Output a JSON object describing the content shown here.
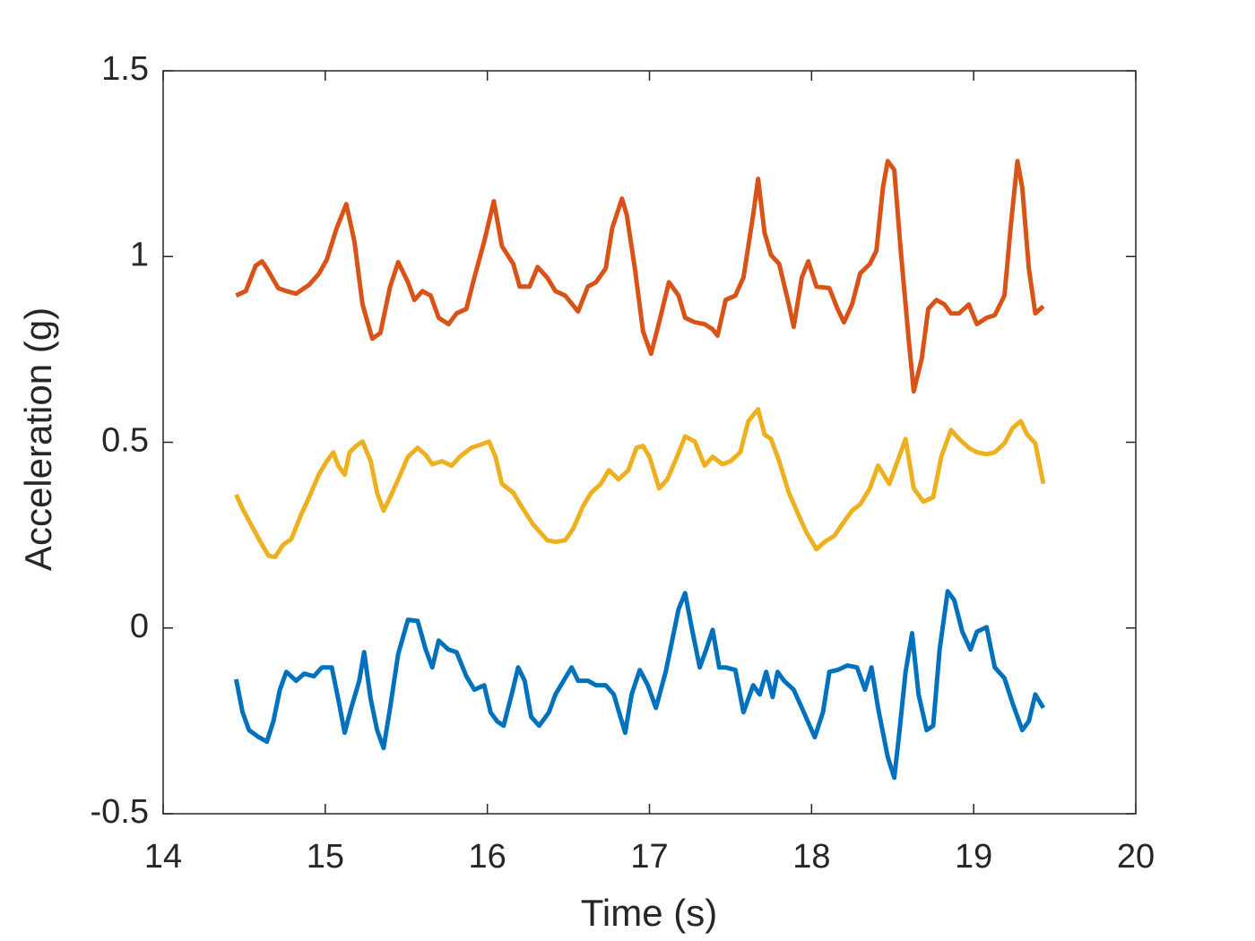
{
  "chart_data": {
    "type": "line",
    "xlabel": "Time (s)",
    "ylabel": "Acceleration (g)",
    "xlim": [
      14,
      20
    ],
    "xticks": [
      14,
      15,
      16,
      17,
      18,
      19,
      20
    ],
    "ylim": [
      -0.5,
      1.5
    ],
    "yticks": [
      -0.5,
      0,
      0.5,
      1,
      1.5
    ],
    "grid": false,
    "series": [
      {
        "color": "#D95319",
        "x": [
          14.45,
          14.51,
          14.57,
          14.61,
          14.64,
          14.71,
          14.76,
          14.82,
          14.9,
          14.96,
          15.01,
          15.07,
          15.13,
          15.18,
          15.23,
          15.29,
          15.34,
          15.4,
          15.45,
          15.51,
          15.55,
          15.6,
          15.65,
          15.7,
          15.76,
          15.81,
          15.87,
          15.92,
          15.98,
          16.04,
          16.09,
          16.16,
          16.2,
          16.26,
          16.31,
          16.37,
          16.42,
          16.48,
          16.56,
          16.62,
          16.67,
          16.73,
          16.77,
          16.83,
          16.86,
          16.91,
          16.96,
          17.01,
          17.06,
          17.12,
          17.18,
          17.22,
          17.28,
          17.34,
          17.39,
          17.42,
          17.47,
          17.53,
          17.58,
          17.64,
          17.67,
          17.71,
          17.75,
          17.8,
          17.86,
          17.89,
          17.94,
          17.98,
          18.03,
          18.11,
          18.16,
          18.2,
          18.25,
          18.3,
          18.36,
          18.4,
          18.44,
          18.47,
          18.51,
          18.55,
          18.6,
          18.63,
          18.68,
          18.72,
          18.77,
          18.82,
          18.86,
          18.91,
          18.97,
          19.02,
          19.08,
          19.13,
          19.19,
          19.23,
          19.27,
          19.3,
          19.34,
          19.38,
          19.43
        ],
        "values": [
          0.895,
          0.907,
          0.975,
          0.987,
          0.968,
          0.915,
          0.907,
          0.9,
          0.924,
          0.953,
          0.992,
          1.076,
          1.141,
          1.04,
          0.871,
          0.779,
          0.794,
          0.919,
          0.985,
          0.931,
          0.883,
          0.907,
          0.895,
          0.835,
          0.818,
          0.847,
          0.859,
          0.944,
          1.04,
          1.149,
          1.028,
          0.98,
          0.919,
          0.919,
          0.972,
          0.943,
          0.907,
          0.895,
          0.852,
          0.919,
          0.931,
          0.968,
          1.076,
          1.156,
          1.112,
          0.968,
          0.799,
          0.738,
          0.823,
          0.931,
          0.895,
          0.835,
          0.823,
          0.818,
          0.804,
          0.787,
          0.883,
          0.895,
          0.944,
          1.112,
          1.209,
          1.064,
          1.004,
          0.98,
          0.871,
          0.811,
          0.944,
          0.987,
          0.919,
          0.915,
          0.859,
          0.823,
          0.871,
          0.955,
          0.98,
          1.016,
          1.185,
          1.257,
          1.233,
          1.016,
          0.774,
          0.637,
          0.726,
          0.859,
          0.883,
          0.871,
          0.847,
          0.847,
          0.871,
          0.818,
          0.835,
          0.842,
          0.895,
          1.088,
          1.257,
          1.185,
          0.968,
          0.847,
          0.866
        ]
      },
      {
        "color": "#EDB120",
        "x": [
          14.45,
          14.49,
          14.54,
          14.6,
          14.65,
          14.69,
          14.74,
          14.79,
          14.85,
          14.9,
          14.96,
          15.01,
          15.05,
          15.08,
          15.12,
          15.15,
          15.19,
          15.23,
          15.28,
          15.32,
          15.36,
          15.4,
          15.45,
          15.51,
          15.57,
          15.62,
          15.66,
          15.72,
          15.78,
          15.83,
          15.9,
          15.95,
          16.01,
          16.05,
          16.09,
          16.16,
          16.21,
          16.28,
          16.37,
          16.42,
          16.48,
          16.53,
          16.59,
          16.64,
          16.7,
          16.75,
          16.81,
          16.87,
          16.92,
          16.96,
          17.0,
          17.06,
          17.11,
          17.17,
          17.22,
          17.28,
          17.34,
          17.39,
          17.45,
          17.5,
          17.56,
          17.61,
          17.67,
          17.71,
          17.75,
          17.8,
          17.86,
          17.92,
          17.97,
          18.03,
          18.08,
          18.14,
          18.19,
          18.25,
          18.3,
          18.36,
          18.41,
          18.48,
          18.52,
          18.58,
          18.63,
          18.69,
          18.75,
          18.8,
          18.86,
          18.91,
          18.97,
          19.02,
          19.08,
          19.13,
          19.19,
          19.24,
          19.29,
          19.33,
          19.38,
          19.43
        ],
        "values": [
          0.359,
          0.321,
          0.28,
          0.232,
          0.195,
          0.191,
          0.224,
          0.239,
          0.304,
          0.352,
          0.413,
          0.449,
          0.473,
          0.437,
          0.413,
          0.473,
          0.49,
          0.502,
          0.449,
          0.364,
          0.316,
          0.352,
          0.4,
          0.461,
          0.485,
          0.466,
          0.441,
          0.449,
          0.437,
          0.461,
          0.485,
          0.492,
          0.502,
          0.461,
          0.388,
          0.364,
          0.328,
          0.28,
          0.236,
          0.232,
          0.236,
          0.268,
          0.328,
          0.364,
          0.388,
          0.425,
          0.4,
          0.425,
          0.485,
          0.49,
          0.461,
          0.376,
          0.4,
          0.461,
          0.516,
          0.502,
          0.437,
          0.461,
          0.441,
          0.449,
          0.473,
          0.557,
          0.589,
          0.521,
          0.509,
          0.449,
          0.364,
          0.304,
          0.256,
          0.212,
          0.232,
          0.248,
          0.28,
          0.316,
          0.333,
          0.376,
          0.437,
          0.388,
          0.437,
          0.509,
          0.376,
          0.34,
          0.352,
          0.461,
          0.533,
          0.509,
          0.485,
          0.473,
          0.468,
          0.473,
          0.497,
          0.538,
          0.557,
          0.521,
          0.497,
          0.388
        ]
      },
      {
        "color": "#0072BD",
        "x": [
          14.45,
          14.49,
          14.53,
          14.59,
          14.64,
          14.68,
          14.72,
          14.76,
          14.82,
          14.87,
          14.93,
          14.98,
          15.04,
          15.08,
          15.12,
          15.16,
          15.21,
          15.24,
          15.28,
          15.32,
          15.36,
          15.4,
          15.45,
          15.51,
          15.57,
          15.62,
          15.66,
          15.7,
          15.76,
          15.81,
          15.87,
          15.92,
          15.98,
          16.02,
          16.06,
          16.1,
          16.15,
          16.19,
          16.23,
          16.27,
          16.32,
          16.38,
          16.42,
          16.47,
          16.52,
          16.56,
          16.62,
          16.67,
          16.73,
          16.78,
          16.85,
          16.89,
          16.94,
          16.99,
          17.04,
          17.1,
          17.14,
          17.18,
          17.22,
          17.26,
          17.31,
          17.35,
          17.39,
          17.43,
          17.47,
          17.53,
          17.58,
          17.64,
          17.68,
          17.72,
          17.76,
          17.79,
          17.83,
          17.89,
          17.94,
          18.02,
          18.07,
          18.11,
          18.16,
          18.22,
          18.28,
          18.33,
          18.37,
          18.41,
          18.47,
          18.51,
          18.54,
          18.58,
          18.62,
          18.66,
          18.71,
          18.75,
          18.79,
          18.84,
          18.88,
          18.93,
          18.98,
          19.02,
          19.08,
          19.13,
          19.19,
          19.24,
          19.3,
          19.34,
          19.38,
          19.43
        ],
        "values": [
          -0.138,
          -0.227,
          -0.275,
          -0.294,
          -0.306,
          -0.251,
          -0.166,
          -0.118,
          -0.142,
          -0.123,
          -0.13,
          -0.106,
          -0.106,
          -0.191,
          -0.282,
          -0.215,
          -0.142,
          -0.065,
          -0.191,
          -0.275,
          -0.323,
          -0.215,
          -0.07,
          0.022,
          0.019,
          -0.058,
          -0.106,
          -0.034,
          -0.058,
          -0.065,
          -0.13,
          -0.166,
          -0.154,
          -0.227,
          -0.251,
          -0.263,
          -0.179,
          -0.106,
          -0.142,
          -0.239,
          -0.263,
          -0.227,
          -0.179,
          -0.142,
          -0.106,
          -0.142,
          -0.142,
          -0.154,
          -0.154,
          -0.179,
          -0.282,
          -0.179,
          -0.113,
          -0.154,
          -0.215,
          -0.118,
          -0.034,
          0.051,
          0.094,
          0.002,
          -0.106,
          -0.058,
          -0.005,
          -0.106,
          -0.106,
          -0.113,
          -0.227,
          -0.154,
          -0.179,
          -0.118,
          -0.186,
          -0.118,
          -0.142,
          -0.166,
          -0.215,
          -0.294,
          -0.227,
          -0.118,
          -0.113,
          -0.101,
          -0.106,
          -0.166,
          -0.106,
          -0.215,
          -0.347,
          -0.403,
          -0.287,
          -0.118,
          -0.014,
          -0.179,
          -0.275,
          -0.263,
          -0.058,
          0.099,
          0.075,
          -0.01,
          -0.058,
          -0.01,
          0.002,
          -0.106,
          -0.135,
          -0.203,
          -0.275,
          -0.251,
          -0.179,
          -0.215
        ]
      }
    ]
  }
}
